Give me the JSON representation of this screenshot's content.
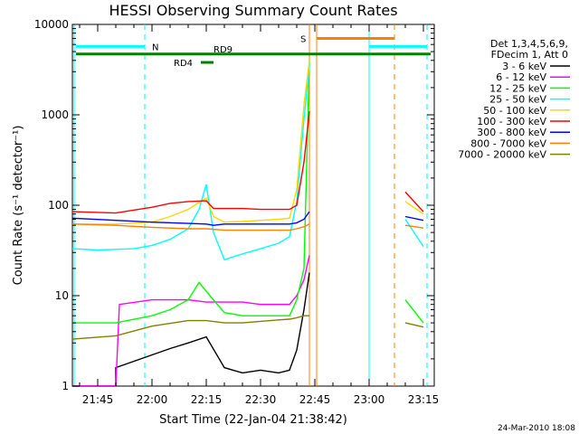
{
  "chart_data": {
    "type": "line",
    "title": "HESSI Observing Summary Count Rates",
    "xlabel": "Start Time (22-Jan-04 21:38:42)",
    "ylabel": "Count Rate (s⁻¹ detector⁻¹)",
    "x_ticks": [
      "21:45",
      "22:00",
      "22:15",
      "22:30",
      "22:45",
      "23:00",
      "23:15"
    ],
    "y_ticks": [
      "1",
      "10",
      "100",
      "1000",
      "10000"
    ],
    "xlim": [
      "21:38",
      "23:18"
    ],
    "ylim": [
      1,
      10000
    ],
    "yscale": "log",
    "legend": {
      "header": [
        "Det 1,3,4,5,6,9,",
        "FDecim 1, Att 0"
      ],
      "placement": "right"
    },
    "flags": [
      {
        "label": "N",
        "color": "#00ffff"
      },
      {
        "label": "S",
        "color": "#ff8000"
      },
      {
        "label": "RD4",
        "color": "#008000"
      },
      {
        "label": "RD9",
        "color": "#008000"
      }
    ],
    "series": [
      {
        "name": "3 - 6 keV",
        "color": "#000000",
        "x": [
          "21:38",
          "21:50",
          "21:50",
          "22:05",
          "22:10",
          "22:15",
          "22:20",
          "22:25",
          "22:30",
          "22:35",
          "22:38",
          "22:40",
          "22:42",
          "22:43.5",
          "23:08",
          "23:12",
          "23:15"
        ],
        "y": [
          1,
          1,
          1.6,
          2.6,
          3.0,
          3.5,
          1.6,
          1.4,
          1.5,
          1.4,
          1.5,
          2.5,
          7,
          18,
          null,
          null,
          null
        ]
      },
      {
        "name": "6 - 12 keV",
        "color": "#ff00ff",
        "x": [
          "21:38",
          "21:50",
          "21:51",
          "22:00",
          "22:10",
          "22:15",
          "22:20",
          "22:25",
          "22:30",
          "22:35",
          "22:38",
          "22:40",
          "22:42",
          "22:43.5",
          "23:08",
          "23:10",
          "23:15"
        ],
        "y": [
          1,
          1,
          8,
          9,
          9,
          8.5,
          8.5,
          8.5,
          8,
          8,
          8,
          10,
          15,
          28,
          null,
          null,
          null
        ]
      },
      {
        "name": "12 - 25 keV",
        "color": "#00ff00",
        "x": [
          "21:38",
          "21:50",
          "22:00",
          "22:05",
          "22:10",
          "22:13",
          "22:16",
          "22:20",
          "22:25",
          "22:30",
          "22:35",
          "22:38",
          "22:40",
          "22:42",
          "22:43.5",
          "23:08",
          "23:10",
          "23:15"
        ],
        "y": [
          5,
          5,
          6,
          7,
          9,
          14,
          10,
          6.5,
          6,
          6,
          6,
          6,
          9,
          20,
          4000,
          null,
          9,
          5
        ]
      },
      {
        "name": "25 - 50 keV",
        "color": "#00ffff",
        "x": [
          "21:38",
          "21:45",
          "21:55",
          "22:00",
          "22:05",
          "22:10",
          "22:13",
          "22:15",
          "22:17",
          "22:20",
          "22:25",
          "22:30",
          "22:35",
          "22:38",
          "22:40",
          "22:42",
          "22:43.5",
          "23:08",
          "23:10",
          "23:15"
        ],
        "y": [
          33,
          32,
          33,
          36,
          42,
          55,
          90,
          170,
          50,
          25,
          29,
          33,
          38,
          45,
          110,
          900,
          3500,
          null,
          70,
          35
        ]
      },
      {
        "name": "50 - 100 keV",
        "color": "#ffd700",
        "x": [
          "21:38",
          "21:50",
          "22:00",
          "22:05",
          "22:10",
          "22:15",
          "22:17",
          "22:20",
          "22:25",
          "22:30",
          "22:35",
          "22:38",
          "22:40",
          "22:42",
          "22:43.5",
          "23:08",
          "23:10",
          "23:15"
        ],
        "y": [
          62,
          62,
          65,
          75,
          90,
          120,
          75,
          65,
          66,
          68,
          70,
          72,
          150,
          1300,
          4000,
          null,
          110,
          80
        ]
      },
      {
        "name": "100 - 300 keV",
        "color": "#ff0000",
        "x": [
          "21:38",
          "21:50",
          "22:00",
          "22:05",
          "22:10",
          "22:15",
          "22:17",
          "22:20",
          "22:25",
          "22:30",
          "22:35",
          "22:38",
          "22:40",
          "22:42",
          "22:43.5",
          "23:08",
          "23:10",
          "23:15"
        ],
        "y": [
          85,
          82,
          95,
          105,
          110,
          112,
          92,
          92,
          92,
          90,
          90,
          90,
          100,
          300,
          1100,
          null,
          140,
          85
        ]
      },
      {
        "name": "300 - 800 keV",
        "color": "#0000ff",
        "x": [
          "21:38",
          "21:50",
          "22:00",
          "22:10",
          "22:15",
          "22:17",
          "22:20",
          "22:25",
          "22:30",
          "22:35",
          "22:38",
          "22:40",
          "22:42",
          "22:43.5",
          "23:08",
          "23:10",
          "23:15"
        ],
        "y": [
          72,
          68,
          65,
          63,
          62,
          60,
          62,
          62,
          62,
          62,
          62,
          64,
          70,
          85,
          null,
          75,
          68
        ]
      },
      {
        "name": "800 - 7000 keV",
        "color": "#ff8000",
        "x": [
          "21:38",
          "21:50",
          "22:00",
          "22:10",
          "22:15",
          "22:20",
          "22:25",
          "22:30",
          "22:35",
          "22:38",
          "22:40",
          "22:42",
          "22:43.5",
          "23:08",
          "23:10",
          "23:15"
        ],
        "y": [
          62,
          60,
          57,
          55,
          55,
          53,
          53,
          53,
          53,
          53,
          55,
          58,
          62,
          null,
          60,
          56
        ]
      },
      {
        "name": "7000 - 20000 keV",
        "color": "#808000",
        "x": [
          "21:38",
          "21:50",
          "22:00",
          "22:10",
          "22:15",
          "22:20",
          "22:25",
          "22:30",
          "22:35",
          "22:38",
          "22:40",
          "22:42",
          "22:43.5",
          "23:08",
          "23:10",
          "23:15"
        ],
        "y": [
          3.3,
          3.6,
          4.6,
          5.3,
          5.3,
          5.0,
          5.0,
          5.2,
          5.4,
          5.5,
          5.7,
          6,
          6,
          null,
          5,
          4.5
        ]
      }
    ]
  },
  "footer": {
    "date": "24-Mar-2010 18:08"
  }
}
